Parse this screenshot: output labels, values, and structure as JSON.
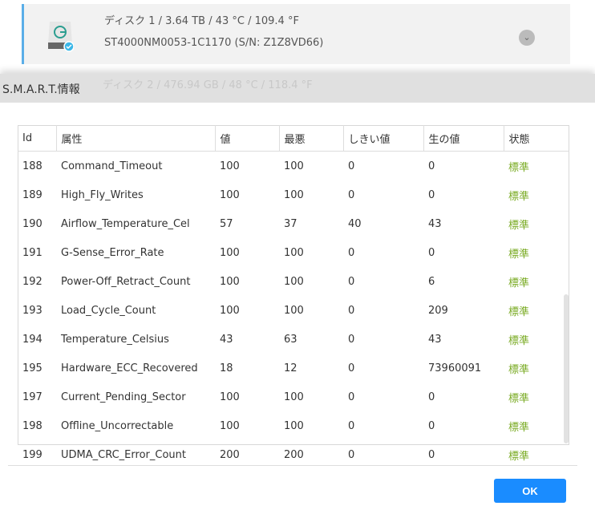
{
  "disks": [
    {
      "title": "ディスク 1 / 3.64 TB / 43 °C / 109.4 °F",
      "model": "ST4000NM0053-1C1170 (S/N: Z1Z8VD66)"
    },
    {
      "title": "ディスク 2 / 476.94 GB / 48 °C / 118.4 °F"
    }
  ],
  "dialog": {
    "title": "S.M.A.R.T.情報",
    "columns": [
      "Id",
      "属性",
      "値",
      "最悪",
      "しきい値",
      "生の値",
      "状態"
    ],
    "rows": [
      [
        "188",
        "Command_Timeout",
        "100",
        "100",
        "0",
        "0",
        "標準"
      ],
      [
        "189",
        "High_Fly_Writes",
        "100",
        "100",
        "0",
        "0",
        "標準"
      ],
      [
        "190",
        "Airflow_Temperature_Cel",
        "57",
        "37",
        "40",
        "43",
        "標準"
      ],
      [
        "191",
        "G-Sense_Error_Rate",
        "100",
        "100",
        "0",
        "0",
        "標準"
      ],
      [
        "192",
        "Power-Off_Retract_Count",
        "100",
        "100",
        "0",
        "6",
        "標準"
      ],
      [
        "193",
        "Load_Cycle_Count",
        "100",
        "100",
        "0",
        "209",
        "標準"
      ],
      [
        "194",
        "Temperature_Celsius",
        "43",
        "63",
        "0",
        "43",
        "標準"
      ],
      [
        "195",
        "Hardware_ECC_Recovered",
        "18",
        "12",
        "0",
        "73960091",
        "標準"
      ],
      [
        "197",
        "Current_Pending_Sector",
        "100",
        "100",
        "0",
        "0",
        "標準"
      ],
      [
        "198",
        "Offline_Uncorrectable",
        "100",
        "100",
        "0",
        "0",
        "標準"
      ],
      [
        "199",
        "UDMA_CRC_Error_Count",
        "200",
        "200",
        "0",
        "0",
        "標準"
      ]
    ],
    "ok_label": "OK"
  },
  "colors": {
    "accent": "#1a8cff",
    "status_ok": "#7aab24"
  }
}
